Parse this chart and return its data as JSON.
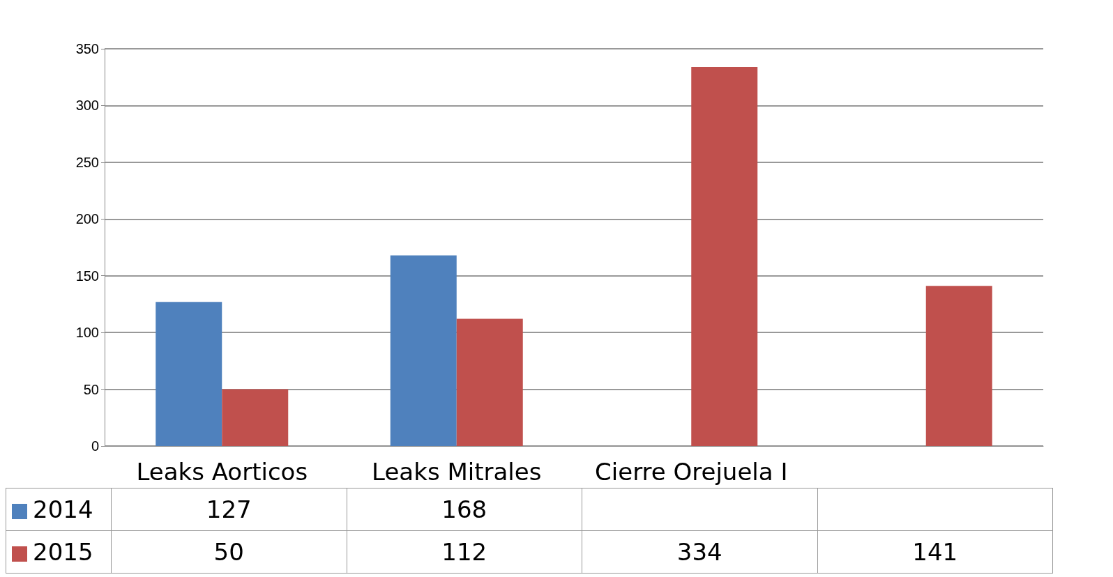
{
  "chart_data": {
    "type": "bar",
    "categories": [
      "Leaks Aorticos",
      "Leaks Mitrales",
      "Cierre Orejuela I",
      null
    ],
    "series": [
      {
        "name": "2014",
        "color": "#4f81bd",
        "values": [
          127,
          168,
          null,
          null
        ]
      },
      {
        "name": "2015",
        "color": "#c0504d",
        "values": [
          50,
          112,
          334,
          141
        ]
      }
    ],
    "ylim": [
      0,
      350
    ],
    "yticks": [
      0,
      50,
      100,
      150,
      200,
      250,
      300,
      350
    ],
    "grid": "y",
    "legend": "bottom",
    "data_labels": true
  }
}
